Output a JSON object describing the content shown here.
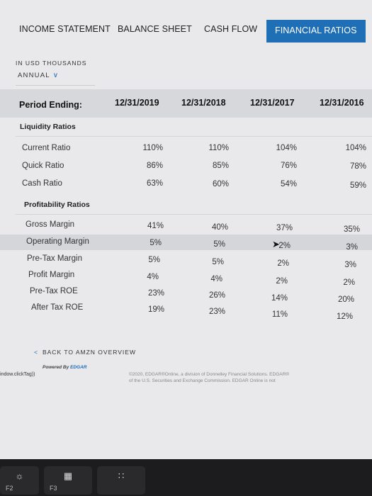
{
  "tabs": [
    {
      "label": "INCOME STATEMENT"
    },
    {
      "label": "BALANCE SHEET"
    },
    {
      "label": "CASH FLOW"
    },
    {
      "label": "FINANCIAL RATIOS"
    }
  ],
  "units_label": "IN USD THOUSANDS",
  "period_select": "ANNUAL",
  "table": {
    "header_label": "Period Ending:",
    "periods": [
      "12/31/2019",
      "12/31/2018",
      "12/31/2017",
      "12/31/2016"
    ],
    "sections": [
      {
        "title": "Liquidity Ratios",
        "rows": [
          {
            "label": "Current Ratio",
            "values": [
              "110%",
              "110%",
              "104%",
              "104%"
            ]
          },
          {
            "label": "Quick Ratio",
            "values": [
              "86%",
              "85%",
              "76%",
              "78%"
            ]
          },
          {
            "label": "Cash Ratio",
            "values": [
              "63%",
              "60%",
              "54%",
              "59%"
            ]
          }
        ]
      },
      {
        "title": "Profitability Ratios",
        "rows": [
          {
            "label": "Gross Margin",
            "values": [
              "41%",
              "40%",
              "37%",
              "35%"
            ]
          },
          {
            "label": "Operating Margin",
            "values": [
              "5%",
              "5%",
              "2%",
              "3%"
            ]
          },
          {
            "label": "Pre-Tax Margin",
            "values": [
              "5%",
              "5%",
              "2%",
              "3%"
            ]
          },
          {
            "label": "Profit Margin",
            "values": [
              "4%",
              "4%",
              "2%",
              "2%"
            ]
          },
          {
            "label": "Pre-Tax ROE",
            "values": [
              "23%",
              "26%",
              "14%",
              "20%"
            ]
          },
          {
            "label": "After Tax ROE",
            "values": [
              "19%",
              "23%",
              "11%",
              "12%"
            ]
          }
        ]
      }
    ]
  },
  "back_link": "BACK TO AMZN OVERVIEW",
  "powered_by": "Powered By",
  "powered_brand": "EDGAR",
  "click_tag": "indow.clickTag))",
  "copyright_line1": "©2020, EDGAR®Online, a division of Donnelley Financial Solutions. EDGAR®",
  "copyright_line2": "of the U.S. Securities and Exchange Commission. EDGAR Online is not",
  "keys": [
    {
      "label": "F2",
      "icon": "brightness-icon"
    },
    {
      "label": "F3",
      "icon": "mission-control-icon"
    },
    {
      "label": "",
      "icon": "launchpad-icon"
    }
  ],
  "colors": {
    "accent": "#1f6fb6",
    "header_band": "#d7d8dc",
    "highlight_row": "#d5d6da"
  }
}
